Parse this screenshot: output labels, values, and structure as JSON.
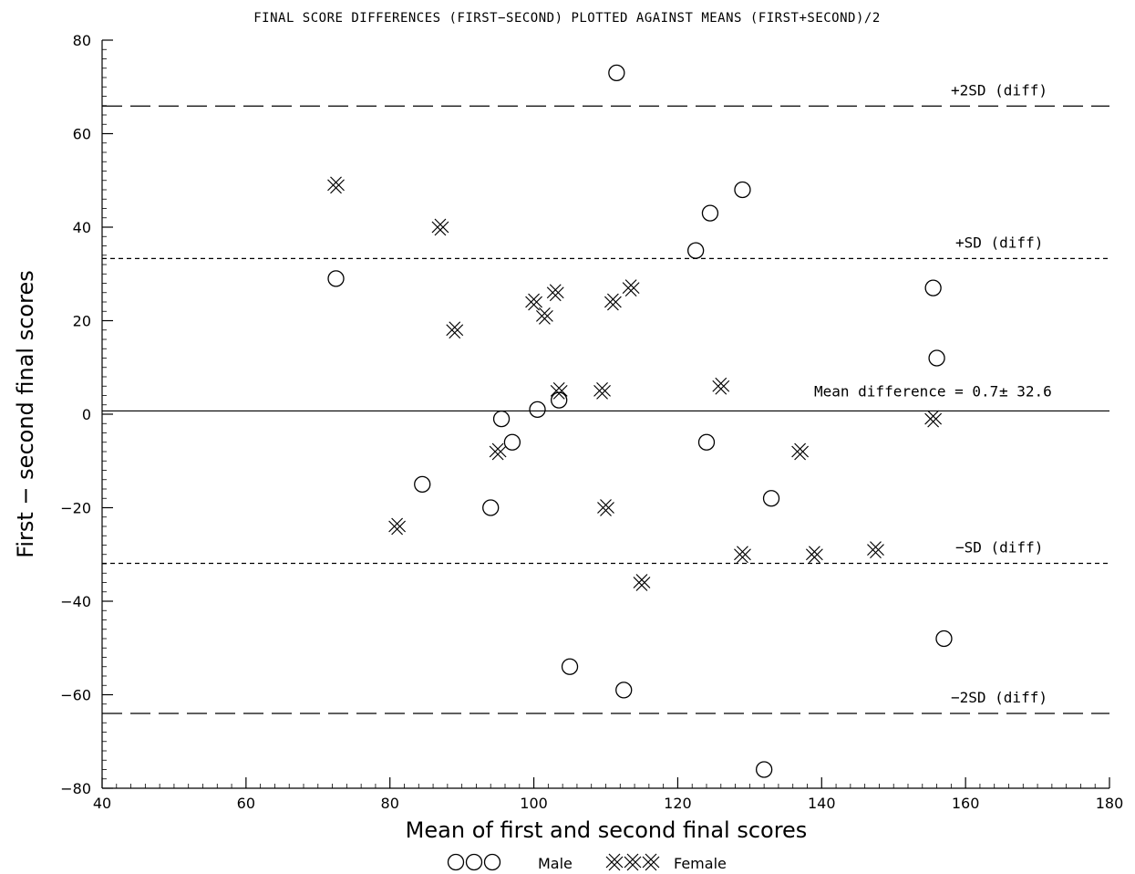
{
  "chart_data": {
    "type": "scatter",
    "title": "FINAL SCORE DIFFERENCES (FIRST−SECOND) PLOTTED AGAINST MEANS (FIRST+SECOND)/2",
    "xlabel": "Mean of first and second final scores",
    "ylabel": "First − second final scores",
    "xlim": [
      40,
      180
    ],
    "ylim": [
      -80,
      80
    ],
    "x_ticks": [
      40,
      60,
      80,
      100,
      120,
      140,
      160,
      180
    ],
    "y_ticks": [
      -80,
      -60,
      -40,
      -20,
      0,
      20,
      40,
      60,
      80
    ],
    "grid": false,
    "legend_position": "bottom-center",
    "reference_lines": [
      {
        "label": "+2SD (diff)",
        "y": 65.9,
        "style": "long-dash"
      },
      {
        "label": "+SD (diff)",
        "y": 33.3,
        "style": "short-dash"
      },
      {
        "label": "Mean difference = 0.7",
        "y": 0.7,
        "style": "solid",
        "suffix": "± 32.6"
      },
      {
        "label": "−SD (diff)",
        "y": -31.9,
        "style": "short-dash"
      },
      {
        "label": "−2SD (diff)",
        "y": -64.0,
        "style": "long-dash"
      }
    ],
    "series": [
      {
        "name": "Male",
        "marker": "circle",
        "points": [
          {
            "x": 111.5,
            "y": 73
          },
          {
            "x": 129,
            "y": 48
          },
          {
            "x": 124.5,
            "y": 43
          },
          {
            "x": 122.5,
            "y": 35
          },
          {
            "x": 72.5,
            "y": 29
          },
          {
            "x": 155.5,
            "y": 27
          },
          {
            "x": 156,
            "y": 12
          },
          {
            "x": 103.5,
            "y": 3
          },
          {
            "x": 100.5,
            "y": 1
          },
          {
            "x": 95.5,
            "y": -1
          },
          {
            "x": 97,
            "y": -6
          },
          {
            "x": 124,
            "y": -6
          },
          {
            "x": 84.5,
            "y": -15
          },
          {
            "x": 133,
            "y": -18
          },
          {
            "x": 94,
            "y": -20
          },
          {
            "x": 157,
            "y": -48
          },
          {
            "x": 105,
            "y": -54
          },
          {
            "x": 112.5,
            "y": -59
          },
          {
            "x": 132,
            "y": -76
          }
        ]
      },
      {
        "name": "Female",
        "marker": "x",
        "points": [
          {
            "x": 72.5,
            "y": 49
          },
          {
            "x": 87,
            "y": 40
          },
          {
            "x": 103,
            "y": 26
          },
          {
            "x": 113.5,
            "y": 27
          },
          {
            "x": 100,
            "y": 24
          },
          {
            "x": 111,
            "y": 24
          },
          {
            "x": 101.5,
            "y": 21
          },
          {
            "x": 89,
            "y": 18
          },
          {
            "x": 126,
            "y": 6
          },
          {
            "x": 103.5,
            "y": 5
          },
          {
            "x": 109.5,
            "y": 5
          },
          {
            "x": 155.5,
            "y": -1
          },
          {
            "x": 95,
            "y": -8
          },
          {
            "x": 137,
            "y": -8
          },
          {
            "x": 110,
            "y": -20
          },
          {
            "x": 81,
            "y": -24
          },
          {
            "x": 147.5,
            "y": -29
          },
          {
            "x": 129,
            "y": -30
          },
          {
            "x": 139,
            "y": -30
          },
          {
            "x": 115,
            "y": -36
          }
        ]
      }
    ],
    "colors": {
      "ink": "#000000",
      "background": "#ffffff"
    }
  }
}
